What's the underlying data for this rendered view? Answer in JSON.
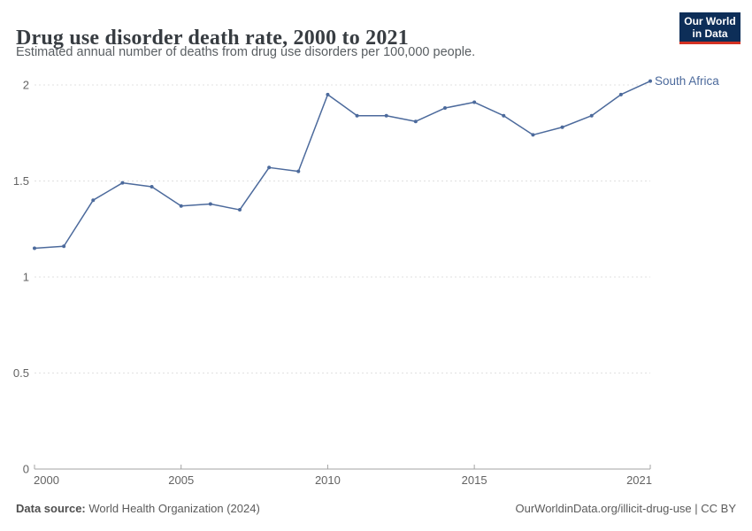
{
  "header": {
    "title": "Drug use disorder death rate, 2000 to 2021",
    "subtitle": "Estimated annual number of deaths from drug use disorders per 100,000 people.",
    "logo": {
      "line1": "Our World",
      "line2": "in Data"
    }
  },
  "colors": {
    "line": "#4c6a9c",
    "series_label": "#4c6a9c",
    "grid": "#e0e0e0",
    "axis": "#a3a3a3",
    "tick_text": "#636363",
    "logo_bg": "#0d2e58",
    "logo_red": "#d33123"
  },
  "chart_data": {
    "type": "line",
    "title": "Drug use disorder death rate, 2000 to 2021",
    "xlabel": "",
    "ylabel": "",
    "x": [
      2000,
      2001,
      2002,
      2003,
      2004,
      2005,
      2006,
      2007,
      2008,
      2009,
      2010,
      2011,
      2012,
      2013,
      2014,
      2015,
      2016,
      2017,
      2018,
      2019,
      2020,
      2021
    ],
    "series": [
      {
        "name": "South Africa",
        "values": [
          1.15,
          1.16,
          1.4,
          1.49,
          1.47,
          1.37,
          1.38,
          1.35,
          1.57,
          1.55,
          1.95,
          1.84,
          1.84,
          1.81,
          1.88,
          1.91,
          1.84,
          1.74,
          1.78,
          1.84,
          1.95,
          2.02
        ]
      }
    ],
    "ylim": [
      0,
      2
    ],
    "yticks": [
      0,
      0.5,
      1,
      1.5,
      2
    ],
    "ytick_labels": [
      "0",
      "0.5",
      "1",
      "1.5",
      "2"
    ],
    "xticks": [
      2000,
      2005,
      2010,
      2015,
      2021
    ],
    "grid": true,
    "legend": "end-of-line label"
  },
  "footer": {
    "source_label": "Data source:",
    "source_text": " World Health Organization (2024)",
    "credit": "OurWorldinData.org/illicit-drug-use | CC BY"
  }
}
